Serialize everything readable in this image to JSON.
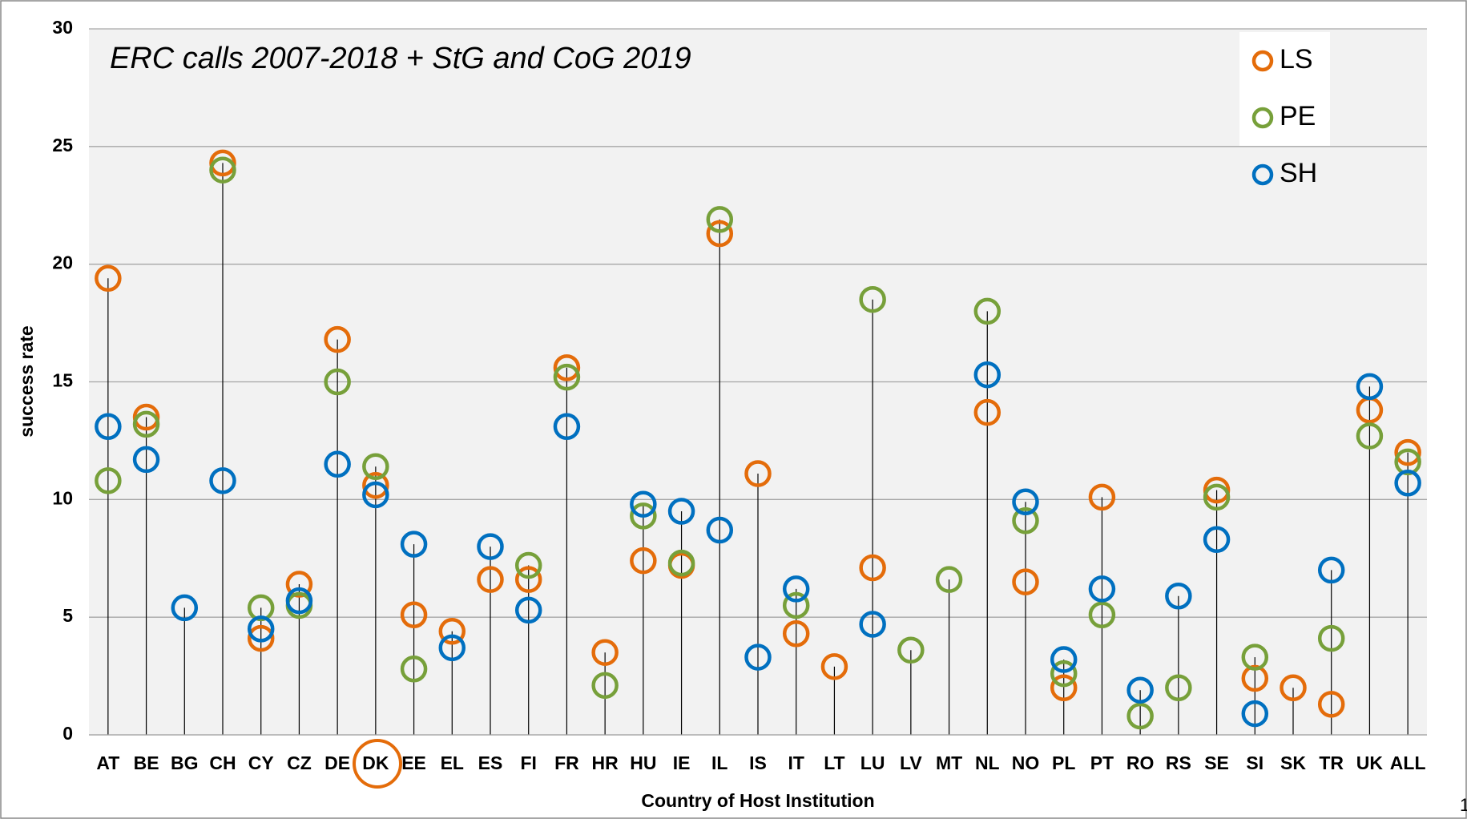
{
  "chart_data": {
    "type": "dot",
    "title": "ERC calls 2007-2018 + StG and CoG 2019",
    "x_label": "Country of Host Institution",
    "y_label": "success rate",
    "page_number": "1",
    "categories": [
      "AT",
      "BE",
      "BG",
      "CH",
      "CY",
      "CZ",
      "DE",
      "DK",
      "EE",
      "EL",
      "ES",
      "FI",
      "FR",
      "HR",
      "HU",
      "IE",
      "IL",
      "IS",
      "IT",
      "LT",
      "LU",
      "LV",
      "MT",
      "NL",
      "NO",
      "PL",
      "PT",
      "RO",
      "RS",
      "SE",
      "SI",
      "SK",
      "TR",
      "UK",
      "ALL"
    ],
    "series": [
      {
        "name": "LS",
        "color": "#e46c0a",
        "values": [
          19.4,
          13.5,
          null,
          24.3,
          4.1,
          6.4,
          16.8,
          10.6,
          5.1,
          4.4,
          6.6,
          6.6,
          15.6,
          3.5,
          7.4,
          7.2,
          21.3,
          11.1,
          4.3,
          2.9,
          7.1,
          null,
          null,
          13.7,
          6.5,
          2.0,
          10.1,
          null,
          null,
          10.4,
          2.4,
          2.0,
          1.3,
          13.8,
          12.0
        ]
      },
      {
        "name": "PE",
        "color": "#77a03a",
        "values": [
          10.8,
          13.2,
          null,
          24.0,
          5.4,
          5.5,
          15.0,
          11.4,
          2.8,
          null,
          null,
          7.2,
          15.2,
          2.1,
          9.3,
          7.3,
          21.9,
          null,
          5.5,
          null,
          18.5,
          3.6,
          6.6,
          18.0,
          9.1,
          2.6,
          5.1,
          0.8,
          2.0,
          10.1,
          3.3,
          null,
          4.1,
          12.7,
          11.6
        ]
      },
      {
        "name": "SH",
        "color": "#0070c0",
        "values": [
          13.1,
          11.7,
          5.4,
          10.8,
          4.5,
          5.7,
          11.5,
          10.2,
          8.1,
          3.7,
          8.0,
          5.3,
          13.1,
          null,
          9.8,
          9.5,
          8.7,
          3.3,
          6.2,
          null,
          4.7,
          null,
          null,
          15.3,
          9.9,
          3.2,
          6.2,
          1.9,
          5.9,
          8.3,
          0.9,
          null,
          7.0,
          14.8,
          10.7
        ]
      }
    ],
    "ylim": [
      0,
      30
    ],
    "yticks": [
      0,
      5,
      10,
      15,
      20,
      25,
      30
    ],
    "grid": true,
    "legend": "top-right"
  }
}
